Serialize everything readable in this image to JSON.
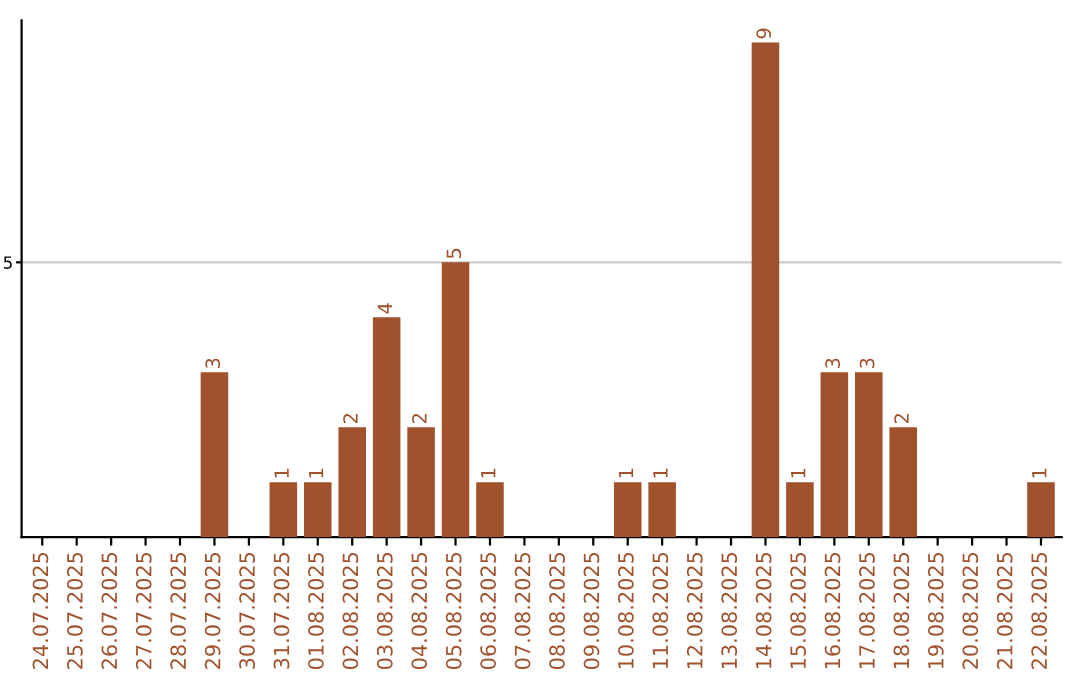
{
  "chart_data": {
    "type": "bar",
    "categories": [
      "24.07.2025",
      "25.07.2025",
      "26.07.2025",
      "27.07.2025",
      "28.07.2025",
      "29.07.2025",
      "30.07.2025",
      "31.07.2025",
      "01.08.2025",
      "02.08.2025",
      "03.08.2025",
      "04.08.2025",
      "05.08.2025",
      "06.08.2025",
      "07.08.2025",
      "08.08.2025",
      "09.08.2025",
      "10.08.2025",
      "11.08.2025",
      "12.08.2025",
      "13.08.2025",
      "14.08.2025",
      "15.08.2025",
      "16.08.2025",
      "17.08.2025",
      "18.08.2025",
      "19.08.2025",
      "20.08.2025",
      "21.08.2025",
      "22.08.2025"
    ],
    "values": [
      0,
      0,
      0,
      0,
      0,
      3,
      0,
      1,
      1,
      2,
      4,
      2,
      5,
      1,
      0,
      0,
      0,
      1,
      1,
      0,
      0,
      9,
      1,
      3,
      3,
      2,
      0,
      0,
      0,
      1
    ],
    "value_labels": [
      null,
      null,
      null,
      null,
      null,
      "3",
      null,
      "1",
      "1",
      "2",
      "4",
      "2",
      "5",
      "1",
      null,
      null,
      null,
      "1",
      "1",
      null,
      null,
      "9",
      "1",
      "3",
      "3",
      "2",
      null,
      null,
      null,
      "1"
    ],
    "color": "#a0522d",
    "ylim": [
      0,
      9.4
    ],
    "yticks": [
      5
    ],
    "grid": "y"
  }
}
